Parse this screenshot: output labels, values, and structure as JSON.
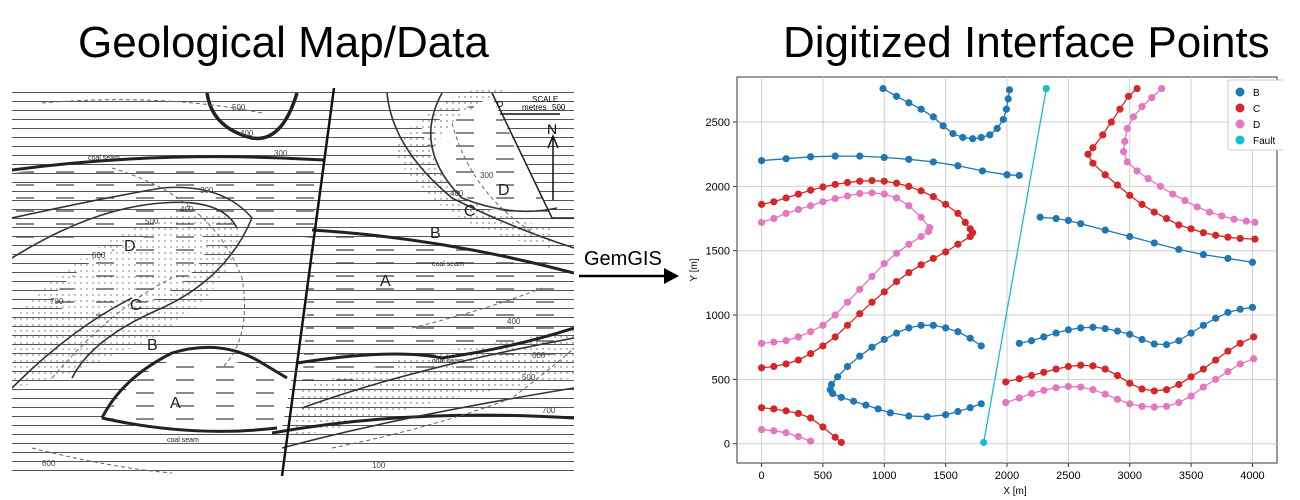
{
  "left_title": "Geological Map/Data",
  "right_title": "Digitized Interface Points",
  "arrow_label": "GemGIS",
  "map": {
    "scale_label": "SCALE",
    "scale_unit": "metres",
    "scale_value": "500",
    "north_label": "N",
    "unit_labels": [
      "A",
      "B",
      "C",
      "D",
      "A",
      "B",
      "C",
      "D"
    ],
    "seam_label": "coal seam",
    "contour_labels": [
      "500",
      "400",
      "300",
      "300",
      "500",
      "400",
      "600",
      "700",
      "400",
      "500",
      "600",
      "700",
      "100",
      "300",
      "400",
      "600"
    ]
  },
  "chart_data": {
    "type": "scatter",
    "xlabel": "X [m]",
    "ylabel": "Y [m]",
    "xlim": [
      -200,
      4200
    ],
    "ylim": [
      -150,
      2850
    ],
    "xticks": [
      "0",
      "500",
      "1000",
      "1500",
      "2000",
      "2500",
      "3000",
      "3500",
      "4000"
    ],
    "yticks": [
      "0",
      "500",
      "1000",
      "1500",
      "2000",
      "2500"
    ],
    "grid": true,
    "legend_position": "top-right",
    "legend": [
      "B",
      "C",
      "D",
      "Fault"
    ],
    "colors": {
      "B": "#1f77b4",
      "C": "#d62728",
      "D": "#e377c2",
      "Fault": "#17becf"
    },
    "series": [
      {
        "name": "B",
        "lines": [
          [
            [
              990,
              2760
            ],
            [
              1100,
              2700
            ],
            [
              1200,
              2650
            ],
            [
              1300,
              2600
            ],
            [
              1400,
              2540
            ],
            [
              1480,
              2470
            ],
            [
              1560,
              2410
            ],
            [
              1640,
              2380
            ],
            [
              1720,
              2370
            ],
            [
              1790,
              2380
            ],
            [
              1860,
              2400
            ],
            [
              1920,
              2450
            ],
            [
              1970,
              2520
            ],
            [
              1995,
              2600
            ],
            [
              2010,
              2680
            ],
            [
              2020,
              2750
            ]
          ],
          [
            [
              0,
              2200
            ],
            [
              200,
              2215
            ],
            [
              400,
              2230
            ],
            [
              600,
              2235
            ],
            [
              800,
              2235
            ],
            [
              1000,
              2225
            ],
            [
              1200,
              2210
            ],
            [
              1400,
              2190
            ],
            [
              1600,
              2160
            ],
            [
              1800,
              2120
            ],
            [
              2000,
              2090
            ],
            [
              2100,
              2085
            ]
          ],
          [
            [
              2270,
              1760
            ],
            [
              2400,
              1750
            ],
            [
              2500,
              1735
            ],
            [
              2600,
              1710
            ],
            [
              2800,
              1660
            ],
            [
              3000,
              1610
            ],
            [
              3200,
              1560
            ],
            [
              3400,
              1510
            ],
            [
              3600,
              1470
            ],
            [
              3800,
              1440
            ],
            [
              4000,
              1410
            ]
          ],
          [
            [
              0,
              2190
            ],
            [
              0,
              2190
            ]
          ],
          [
            [
              2100,
              780
            ],
            [
              2200,
              800
            ],
            [
              2300,
              830
            ],
            [
              2400,
              860
            ],
            [
              2500,
              885
            ],
            [
              2600,
              900
            ],
            [
              2700,
              905
            ],
            [
              2800,
              895
            ],
            [
              2900,
              875
            ],
            [
              3000,
              850
            ],
            [
              3100,
              810
            ],
            [
              3200,
              775
            ],
            [
              3300,
              770
            ],
            [
              3400,
              800
            ],
            [
              3500,
              860
            ],
            [
              3600,
              920
            ],
            [
              3700,
              975
            ],
            [
              3800,
              1020
            ],
            [
              3900,
              1045
            ],
            [
              4000,
              1060
            ]
          ],
          [
            [
              1790,
              760
            ],
            [
              1700,
              820
            ],
            [
              1600,
              870
            ],
            [
              1500,
              900
            ],
            [
              1400,
              920
            ],
            [
              1300,
              920
            ],
            [
              1200,
              900
            ],
            [
              1100,
              860
            ],
            [
              1000,
              810
            ],
            [
              900,
              750
            ],
            [
              800,
              680
            ],
            [
              700,
              600
            ],
            [
              620,
              520
            ],
            [
              570,
              460
            ],
            [
              560,
              420
            ],
            [
              580,
              390
            ],
            [
              650,
              360
            ],
            [
              750,
              330
            ],
            [
              850,
              300
            ],
            [
              950,
              270
            ],
            [
              1050,
              240
            ],
            [
              1200,
              215
            ],
            [
              1350,
              210
            ],
            [
              1500,
              225
            ],
            [
              1600,
              250
            ],
            [
              1700,
              280
            ],
            [
              1790,
              310
            ]
          ]
        ]
      },
      {
        "name": "C",
        "lines": [
          [
            [
              0,
              1860
            ],
            [
              100,
              1880
            ],
            [
              200,
              1910
            ],
            [
              300,
              1940
            ],
            [
              400,
              1970
            ],
            [
              500,
              1995
            ],
            [
              600,
              2015
            ],
            [
              700,
              2030
            ],
            [
              800,
              2040
            ],
            [
              900,
              2045
            ],
            [
              1000,
              2040
            ],
            [
              1100,
              2025
            ],
            [
              1200,
              2000
            ],
            [
              1300,
              1965
            ],
            [
              1400,
              1920
            ],
            [
              1500,
              1860
            ],
            [
              1600,
              1790
            ],
            [
              1660,
              1720
            ],
            [
              1700,
              1670
            ],
            [
              1720,
              1640
            ],
            [
              1700,
              1610
            ],
            [
              1600,
              1550
            ],
            [
              1500,
              1490
            ],
            [
              1400,
              1440
            ],
            [
              1300,
              1390
            ],
            [
              1200,
              1330
            ],
            [
              1100,
              1260
            ],
            [
              1000,
              1180
            ],
            [
              900,
              1100
            ],
            [
              800,
              1010
            ],
            [
              700,
              920
            ],
            [
              600,
              830
            ],
            [
              500,
              760
            ],
            [
              400,
              700
            ],
            [
              300,
              650
            ],
            [
              200,
              620
            ],
            [
              100,
              600
            ],
            [
              0,
              590
            ]
          ],
          [
            [
              0,
              280
            ],
            [
              100,
              270
            ],
            [
              200,
              255
            ],
            [
              300,
              235
            ],
            [
              400,
              200
            ],
            [
              500,
              130
            ],
            [
              600,
              50
            ],
            [
              650,
              10
            ]
          ],
          [
            [
              3060,
              2760
            ],
            [
              2990,
              2700
            ],
            [
              2920,
              2600
            ],
            [
              2850,
              2500
            ],
            [
              2780,
              2400
            ],
            [
              2700,
              2300
            ],
            [
              2660,
              2250
            ],
            [
              2700,
              2180
            ],
            [
              2800,
              2090
            ],
            [
              2900,
              2010
            ],
            [
              3000,
              1930
            ],
            [
              3100,
              1860
            ],
            [
              3200,
              1800
            ],
            [
              3300,
              1750
            ],
            [
              3400,
              1700
            ],
            [
              3500,
              1670
            ],
            [
              3600,
              1640
            ],
            [
              3700,
              1620
            ],
            [
              3800,
              1605
            ],
            [
              3900,
              1595
            ],
            [
              4020,
              1590
            ]
          ],
          [
            [
              1990,
              480
            ],
            [
              2100,
              505
            ],
            [
              2200,
              530
            ],
            [
              2300,
              555
            ],
            [
              2400,
              580
            ],
            [
              2500,
              600
            ],
            [
              2600,
              610
            ],
            [
              2700,
              605
            ],
            [
              2800,
              580
            ],
            [
              2900,
              530
            ],
            [
              3000,
              470
            ],
            [
              3100,
              425
            ],
            [
              3200,
              410
            ],
            [
              3300,
              420
            ],
            [
              3400,
              460
            ],
            [
              3500,
              520
            ],
            [
              3600,
              580
            ],
            [
              3700,
              650
            ],
            [
              3800,
              720
            ],
            [
              3900,
              780
            ],
            [
              4010,
              830
            ]
          ]
        ]
      },
      {
        "name": "D",
        "lines": [
          [
            [
              0,
              1720
            ],
            [
              100,
              1750
            ],
            [
              200,
              1790
            ],
            [
              300,
              1820
            ],
            [
              400,
              1850
            ],
            [
              500,
              1880
            ],
            [
              600,
              1905
            ],
            [
              700,
              1925
            ],
            [
              800,
              1945
            ],
            [
              900,
              1950
            ],
            [
              1000,
              1940
            ],
            [
              1100,
              1910
            ],
            [
              1200,
              1850
            ],
            [
              1300,
              1760
            ],
            [
              1370,
              1680
            ],
            [
              1360,
              1650
            ],
            [
              1300,
              1610
            ],
            [
              1200,
              1550
            ],
            [
              1100,
              1480
            ],
            [
              1000,
              1400
            ],
            [
              900,
              1300
            ],
            [
              800,
              1200
            ],
            [
              700,
              1100
            ],
            [
              600,
              1000
            ],
            [
              500,
              920
            ],
            [
              400,
              870
            ],
            [
              300,
              830
            ],
            [
              200,
              800
            ],
            [
              100,
              790
            ],
            [
              0,
              780
            ]
          ],
          [
            [
              0,
              110
            ],
            [
              100,
              100
            ],
            [
              200,
              85
            ],
            [
              300,
              55
            ],
            [
              400,
              20
            ]
          ],
          [
            [
              3260,
              2760
            ],
            [
              3180,
              2690
            ],
            [
              3100,
              2620
            ],
            [
              3030,
              2540
            ],
            [
              2980,
              2450
            ],
            [
              2960,
              2350
            ],
            [
              2950,
              2270
            ],
            [
              2980,
              2190
            ],
            [
              3060,
              2120
            ],
            [
              3150,
              2060
            ],
            [
              3250,
              2000
            ],
            [
              3350,
              1940
            ],
            [
              3450,
              1890
            ],
            [
              3550,
              1840
            ],
            [
              3650,
              1800
            ],
            [
              3750,
              1770
            ],
            [
              3850,
              1745
            ],
            [
              3950,
              1730
            ],
            [
              4020,
              1720
            ]
          ],
          [
            [
              1990,
              320
            ],
            [
              2100,
              355
            ],
            [
              2200,
              390
            ],
            [
              2300,
              415
            ],
            [
              2400,
              435
            ],
            [
              2500,
              445
            ],
            [
              2600,
              440
            ],
            [
              2700,
              420
            ],
            [
              2800,
              385
            ],
            [
              2900,
              345
            ],
            [
              3000,
              310
            ],
            [
              3100,
              290
            ],
            [
              3200,
              285
            ],
            [
              3300,
              290
            ],
            [
              3400,
              320
            ],
            [
              3500,
              370
            ],
            [
              3600,
              440
            ],
            [
              3700,
              500
            ],
            [
              3800,
              560
            ],
            [
              3900,
              620
            ],
            [
              4010,
              660
            ]
          ]
        ]
      },
      {
        "name": "Fault",
        "lines": [
          [
            [
              1810,
              10
            ],
            [
              2320,
              2760
            ]
          ]
        ]
      }
    ]
  }
}
